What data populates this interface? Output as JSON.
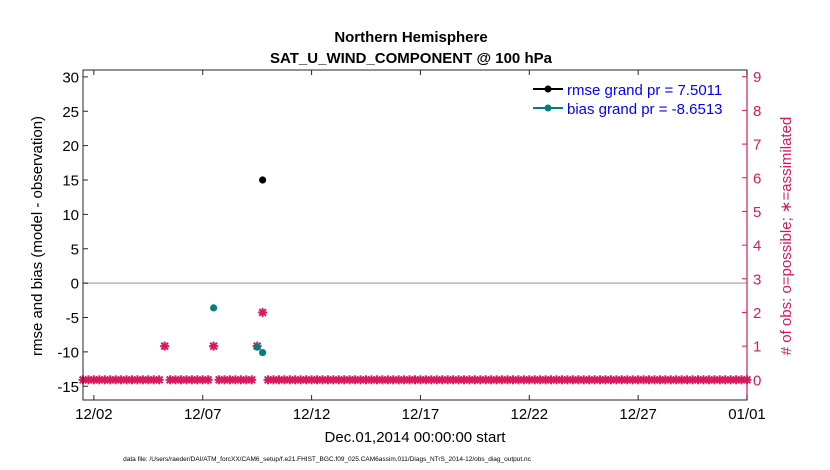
{
  "chart_data": {
    "type": "scatter",
    "title": "Northern Hemisphere",
    "subtitle": "SAT_U_WIND_COMPONENT @ 100 hPa",
    "xlabel": "Dec.01,2014 00:00:00 start",
    "ylabel": "rmse and bias (model - observation)",
    "ylabel_right": "# of obs: o=possible; ∗=assimilated",
    "footer": "data file: /Users/raeder/DAI/ATM_forcXX/CAM6_setup/f.e21.FHIST_BGC.f09_025.CAM6assim.011/Diags_NTrS_2014-12/obs_diag_output.nc",
    "xlim": [
      1.5,
      32.0
    ],
    "ylim": [
      -17,
      31
    ],
    "ylim_right": [
      -0.6,
      9.2
    ],
    "x_ticks": [
      {
        "x": 2,
        "label": "12/02"
      },
      {
        "x": 7,
        "label": "12/07"
      },
      {
        "x": 12,
        "label": "12/12"
      },
      {
        "x": 17,
        "label": "12/17"
      },
      {
        "x": 22,
        "label": "12/22"
      },
      {
        "x": 27,
        "label": "12/27"
      },
      {
        "x": 32,
        "label": "01/01"
      }
    ],
    "y_ticks": [
      {
        "v": 30,
        "label": "30"
      },
      {
        "v": 25,
        "label": "25"
      },
      {
        "v": 20,
        "label": "20"
      },
      {
        "v": 15,
        "label": "15"
      },
      {
        "v": 10,
        "label": "10"
      },
      {
        "v": 5,
        "label": "5"
      },
      {
        "v": 0,
        "label": "0"
      },
      {
        "v": -5,
        "label": "-5"
      },
      {
        "v": -10,
        "label": "-10"
      },
      {
        "v": -15,
        "label": "-15"
      }
    ],
    "y_ticks_right": [
      {
        "v": 0,
        "label": "0"
      },
      {
        "v": 1,
        "label": "1"
      },
      {
        "v": 2,
        "label": "2"
      },
      {
        "v": 3,
        "label": "3"
      },
      {
        "v": 4,
        "label": "4"
      },
      {
        "v": 5,
        "label": "5"
      },
      {
        "v": 6,
        "label": "6"
      },
      {
        "v": 7,
        "label": "7"
      },
      {
        "v": 8,
        "label": "8"
      },
      {
        "v": 9,
        "label": "9"
      }
    ],
    "zero_line": 0,
    "series": [
      {
        "name": "rmse grand pr = 7.5011",
        "color": "#000000",
        "points": [
          {
            "x": 9.75,
            "y": 15.0
          }
        ]
      },
      {
        "name": "bias grand pr = -8.6513",
        "color": "#007f80",
        "points": [
          {
            "x": 7.5,
            "y": -3.6
          },
          {
            "x": 9.5,
            "y": -9.3
          },
          {
            "x": 9.75,
            "y": -10.1
          }
        ]
      }
    ],
    "obs_counts": {
      "color": "#d8185c",
      "start_x": 1.5,
      "end_x": 32.0,
      "step": 0.25,
      "nonzero": [
        {
          "x": 5.25,
          "count": 1
        },
        {
          "x": 7.5,
          "count": 1
        },
        {
          "x": 9.5,
          "count": 1
        },
        {
          "x": 9.75,
          "count": 2
        }
      ],
      "gaps": [
        5.25,
        7.5,
        9.5,
        9.75
      ]
    },
    "legend_position": "top-right"
  }
}
